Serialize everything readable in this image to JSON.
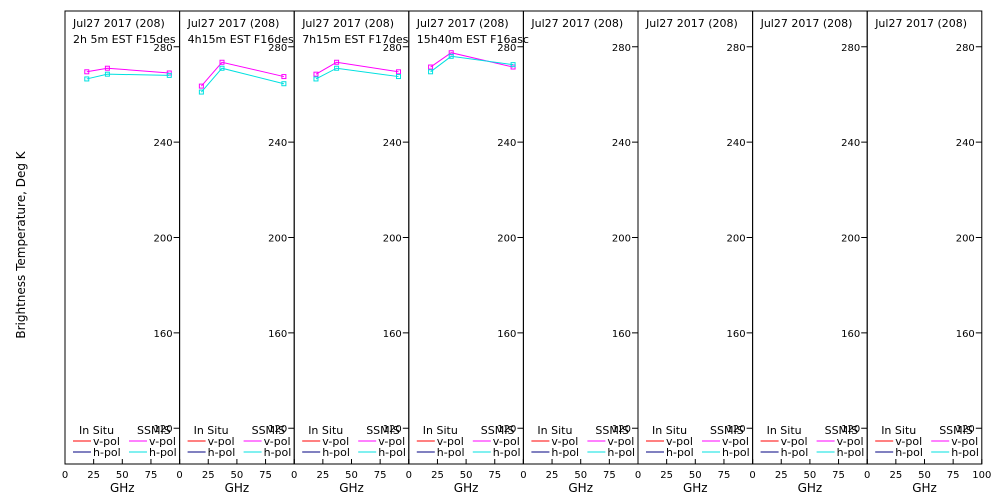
{
  "chart_data": {
    "type": "line",
    "ylabel": "Brightness Temperature, Deg K",
    "xlabel": "GHz",
    "xlim": [
      0,
      100
    ],
    "xticks": [
      0,
      25,
      50,
      75,
      100
    ],
    "ylim": [
      105,
      295
    ],
    "yticks": [
      120,
      160,
      200,
      240,
      280
    ],
    "legend": {
      "in_situ_header": "In Situ",
      "ssmis_header": "SSMIS",
      "v_label": "v-pol",
      "h_label": "h-pol"
    },
    "colors": {
      "insitu_v": "#ff0000",
      "insitu_h": "#000080",
      "ssmis_v": "#ff00ff",
      "ssmis_h": "#00e0e0"
    },
    "panels": [
      {
        "date": "Jul27 2017 (208)",
        "info": "2h 5m  EST  F15des",
        "series": [
          {
            "name": "v-pol",
            "x": [
              19,
              37,
              91
            ],
            "y": [
              269.5,
              271.0,
              269.0
            ]
          },
          {
            "name": "h-pol",
            "x": [
              19,
              37,
              91
            ],
            "y": [
              266.5,
              268.5,
              268.0
            ]
          }
        ]
      },
      {
        "date": "Jul27 2017 (208)",
        "info": "4h15m  EST  F16des",
        "series": [
          {
            "name": "v-pol",
            "x": [
              19,
              37,
              91
            ],
            "y": [
              263.5,
              273.5,
              267.5
            ]
          },
          {
            "name": "h-pol",
            "x": [
              19,
              37,
              91
            ],
            "y": [
              261.0,
              271.0,
              264.5
            ]
          }
        ]
      },
      {
        "date": "Jul27 2017 (208)",
        "info": "7h15m  EST  F17des",
        "series": [
          {
            "name": "v-pol",
            "x": [
              19,
              37,
              91
            ],
            "y": [
              268.5,
              273.5,
              269.5
            ]
          },
          {
            "name": "h-pol",
            "x": [
              19,
              37,
              91
            ],
            "y": [
              266.5,
              271.0,
              267.5
            ]
          }
        ]
      },
      {
        "date": "Jul27 2017 (208)",
        "info": "15h40m  EST  F16asc",
        "series": [
          {
            "name": "v-pol",
            "x": [
              19,
              37,
              91
            ],
            "y": [
              271.5,
              277.5,
              271.5
            ]
          },
          {
            "name": "h-pol",
            "x": [
              19,
              37,
              91
            ],
            "y": [
              269.5,
              276.0,
              272.5
            ]
          }
        ]
      },
      {
        "date": "Jul27 2017 (208)",
        "info": "",
        "series": []
      },
      {
        "date": "Jul27 2017 (208)",
        "info": "",
        "series": []
      },
      {
        "date": "Jul27 2017 (208)",
        "info": "",
        "series": []
      },
      {
        "date": "Jul27 2017 (208)",
        "info": "",
        "series": []
      }
    ]
  }
}
